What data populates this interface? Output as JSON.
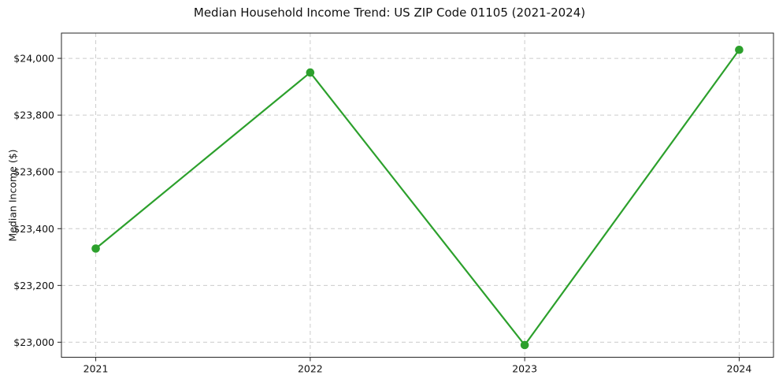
{
  "chart_data": {
    "type": "line",
    "title": "Median Household Income Trend: US ZIP Code 01105 (2021-2024)",
    "xlabel": "",
    "ylabel": "Median Income ($)",
    "x": [
      2021,
      2022,
      2023,
      2024
    ],
    "x_tick_labels": [
      "2021",
      "2022",
      "2023",
      "2024"
    ],
    "series": [
      {
        "name": "Median Household Income",
        "values": [
          23330,
          23950,
          22990,
          24030
        ],
        "color": "#2ca02c",
        "marker": "circle"
      }
    ],
    "y_ticks": [
      23000,
      23200,
      23400,
      23600,
      23800,
      24000
    ],
    "y_tick_labels": [
      "$23,000",
      "$23,200",
      "$23,400",
      "$23,600",
      "$23,800",
      "$24,000"
    ],
    "xlim": [
      2020.84,
      2024.16
    ],
    "ylim": [
      22947,
      24089
    ],
    "grid": true,
    "grid_style": "dashed",
    "legend": false,
    "colors": {
      "line": "#2ca02c",
      "grid": "#cccccc",
      "spine": "#262626",
      "text": "#111111",
      "background": "#ffffff"
    }
  }
}
